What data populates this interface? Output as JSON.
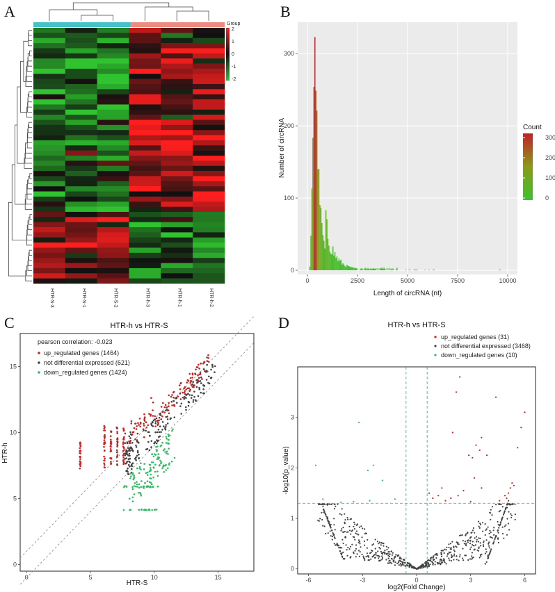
{
  "panels": {
    "a": "A",
    "b": "B",
    "c": "C",
    "d": "D"
  },
  "colors": {
    "heat_high": "#ff1e1e",
    "heat_mid": "#101010",
    "heat_low": "#2fc42f",
    "group_htr_s": "#45c1c8",
    "group_htr_h": "#ee8b80",
    "up": "#cc2222",
    "not_diff": "#444444",
    "down": "#33bb66"
  },
  "chart_data": [
    {
      "type": "heatmap",
      "panel": "A",
      "columns": [
        "HTR-S-3",
        "HTR-S-1",
        "HTR-S-2",
        "HTR-h-3",
        "HTR-h-1",
        "HTR-h-2"
      ],
      "group_legend_title": "Group",
      "color_scale_ticks": [
        "2",
        "1",
        "0",
        "-1",
        "-2"
      ],
      "value_range": [
        -2,
        2
      ]
    },
    {
      "type": "bar",
      "panel": "B",
      "xlabel": "Length of circRNA (nt)",
      "ylabel": "Number of circRNA",
      "x_ticks": [
        "0",
        "2500",
        "5000",
        "7500",
        "10000"
      ],
      "y_ticks": [
        "0",
        "100",
        "200",
        "300"
      ],
      "xlim": [
        0,
        10000
      ],
      "ylim": [
        0,
        330
      ],
      "bin_width": 50,
      "peak": {
        "x": 350,
        "y": 323
      },
      "legend_title": "Count",
      "legend_ticks": [
        "300",
        "200",
        "100",
        "0"
      ]
    },
    {
      "type": "scatter",
      "panel": "C",
      "title": "HTR-h vs HTR-S",
      "xlabel": "HTR-S",
      "ylabel": "HTR-h",
      "x_ticks": [
        "0",
        "5",
        "10",
        "15"
      ],
      "y_ticks": [
        "0",
        "5",
        "10",
        "15"
      ],
      "xlim": [
        -0.5,
        17.8
      ],
      "ylim": [
        -0.5,
        17.5
      ],
      "correlation_text": "pearson correlation: -0.023",
      "series": [
        {
          "name": "up_regulated genes (1464)"
        },
        {
          "name": "not differential expressed (621)"
        },
        {
          "name": "down_regulated genes (1424)"
        }
      ]
    },
    {
      "type": "scatter",
      "panel": "D",
      "title": "HTR-h vs HTR-S",
      "xlabel": "log2(Fold Change)",
      "ylabel": "-log10(p_value)",
      "x_ticks": [
        "-6",
        "-3",
        "0",
        "3",
        "6"
      ],
      "y_ticks": [
        "0",
        "1",
        "2",
        "3"
      ],
      "xlim": [
        -6.6,
        6.6
      ],
      "ylim": [
        -0.1,
        4.0
      ],
      "vlines": [
        -0.585,
        0.585
      ],
      "hline": 1.3,
      "series": [
        {
          "name": "up_regulated genes (31)"
        },
        {
          "name": "not differential expressed (3468)"
        },
        {
          "name": "down_regulated genes (10)"
        }
      ]
    }
  ]
}
